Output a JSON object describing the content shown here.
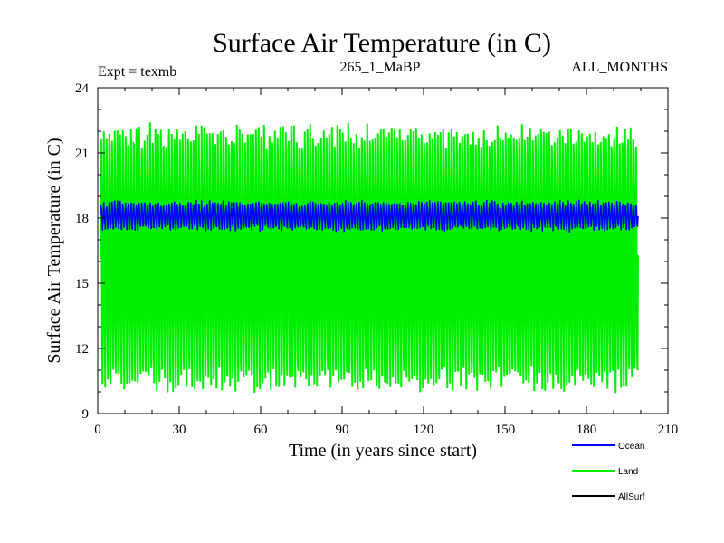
{
  "chart_data": {
    "type": "line",
    "title": "Surface Air Temperature (in C)",
    "subtitle_left": "Expt = texmb",
    "subtitle_center": "265_1_MaBP",
    "subtitle_right": "ALL_MONTHS",
    "xlabel": "Time (in years since start)",
    "ylabel": "Surface Air Temperature (in C)",
    "xlim": [
      0,
      210
    ],
    "ylim": [
      9,
      24
    ],
    "x_ticks": [
      0,
      30,
      60,
      90,
      120,
      150,
      180,
      210
    ],
    "y_ticks": [
      9,
      12,
      15,
      18,
      21,
      24
    ],
    "x_tick_labels": [
      "0",
      "30",
      "60",
      "90",
      "120",
      "150",
      "180",
      "210"
    ],
    "y_tick_labels": [
      "9",
      "12",
      "15",
      "18",
      "21",
      "24"
    ],
    "x_minor_step": 10,
    "y_minor_step": 1,
    "data_x_range": [
      1,
      199
    ],
    "series": [
      {
        "name": "Ocean",
        "color": "#0000ff",
        "monthly_cycle": true,
        "mean": 18.1,
        "seasonal_amplitude": 0.55,
        "drawn_in_plot": true
      },
      {
        "name": "Land",
        "color": "#00ee00",
        "monthly_cycle": true,
        "mean": 16.2,
        "seasonal_amplitude": 5.6,
        "drawn_in_plot": true
      },
      {
        "name": "AllSurf",
        "color": "#000000",
        "drawn_in_plot": false
      }
    ]
  }
}
